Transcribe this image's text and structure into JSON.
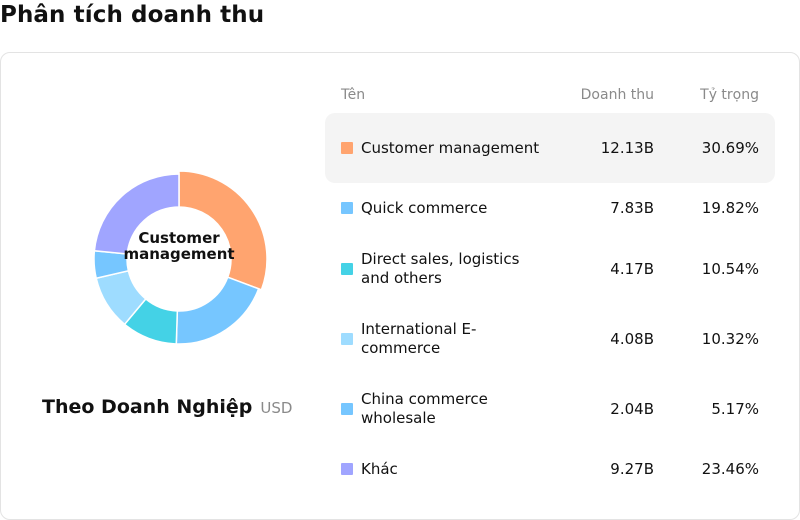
{
  "page_title": "Phân tích doanh thu",
  "caption": {
    "title": "Theo Doanh Nghiệp",
    "unit": "USD"
  },
  "table": {
    "headers": {
      "name": "Tên",
      "revenue": "Doanh thu",
      "share": "Tỷ trọng"
    }
  },
  "chart_data": {
    "type": "pie",
    "center_label": "Customer management",
    "categories": [
      "Customer management",
      "Quick commerce",
      "Direct sales, logistics and others",
      "International E-commerce",
      "China commerce wholesale",
      "Khác"
    ],
    "revenue_labels": [
      "12.13B",
      "7.83B",
      "4.17B",
      "4.08B",
      "2.04B",
      "9.27B"
    ],
    "share_labels": [
      "30.69%",
      "19.82%",
      "10.54%",
      "10.32%",
      "5.17%",
      "23.46%"
    ],
    "values": [
      30.69,
      19.82,
      10.54,
      10.32,
      5.17,
      23.46
    ],
    "colors": [
      "#ffa46f",
      "#76c6ff",
      "#44d2e6",
      "#9edcff",
      "#76c6ff",
      "#a0a5ff"
    ],
    "highlighted_index": 0
  }
}
